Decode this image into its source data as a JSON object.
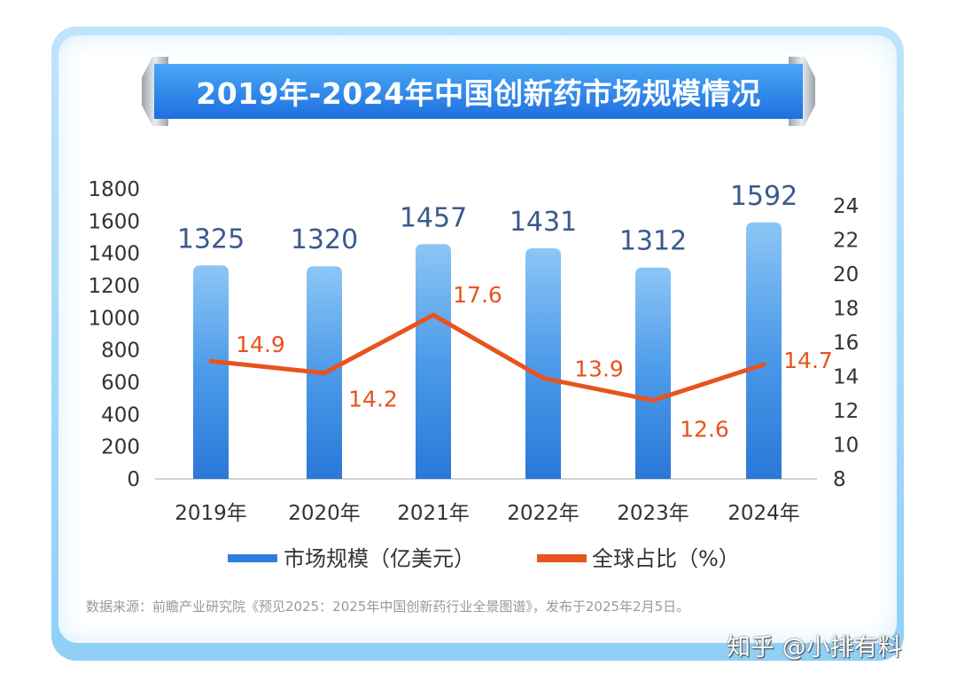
{
  "chart_data": {
    "type": "bar+line",
    "title": "2019年-2024年中国创新药市场规模情况",
    "categories": [
      "2019年",
      "2020年",
      "2021年",
      "2022年",
      "2023年",
      "2024年"
    ],
    "series": [
      {
        "name": "市场规模（亿美元）",
        "type": "bar",
        "axis": "left",
        "values": [
          1325,
          1320,
          1457,
          1431,
          1312,
          1592
        ],
        "color": "#2e7de0"
      },
      {
        "name": "全球占比（%）",
        "type": "line",
        "axis": "right",
        "values": [
          14.9,
          14.2,
          17.6,
          13.9,
          12.6,
          14.7
        ],
        "color": "#e8531e"
      }
    ],
    "bar_labels": [
      "1325",
      "1320",
      "1457",
      "1431",
      "1312",
      "1592"
    ],
    "line_labels": [
      "14.9",
      "14.2",
      "17.6",
      "13.9",
      "12.6",
      "14.7"
    ],
    "left_axis": {
      "ylim": [
        0,
        1800
      ],
      "ticks": [
        "0",
        "200",
        "400",
        "600",
        "800",
        "1000",
        "1200",
        "1400",
        "1600",
        "1800"
      ]
    },
    "right_axis": {
      "ylim": [
        8,
        24
      ],
      "ticks": [
        "8",
        "10",
        "12",
        "14",
        "16",
        "18",
        "20",
        "22",
        "24"
      ]
    },
    "legend_placement": "bottom",
    "grid": false
  },
  "source": "数据来源：前瞻产业研究院《预见2025：2025年中国创新药行业全景图谱》，发布于2025年2月5日。",
  "watermark": "知乎 @小排有料"
}
